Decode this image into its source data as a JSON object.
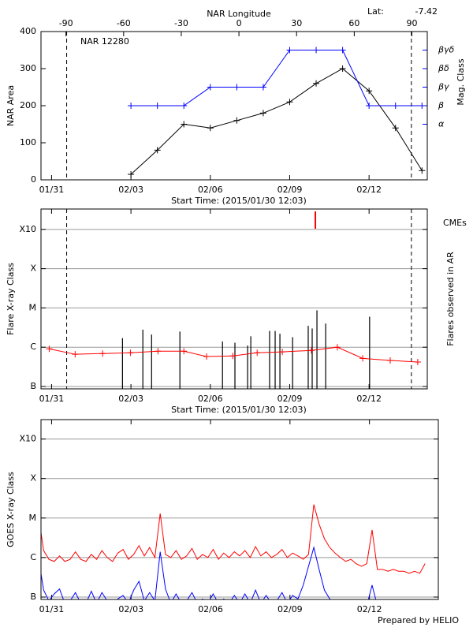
{
  "chart_data": [
    {
      "type": "line",
      "title": "NAR 12280",
      "lat_label": "Lat:",
      "lat": -7.42,
      "ylabel": "NAR Area",
      "xlabel": "Start Time: (2015/01/30 12:03)",
      "x2label": "NAR Longitude",
      "y2label": "Mag. Class",
      "y2color": "#0000ff",
      "xlim": [
        0.1,
        14.7
      ],
      "xticks": [
        {
          "value": 0.5,
          "label": "01/31"
        },
        {
          "value": 3.5,
          "label": "02/03"
        },
        {
          "value": 6.5,
          "label": "02/06"
        },
        {
          "value": 9.5,
          "label": "02/09"
        },
        {
          "value": 12.5,
          "label": "02/12"
        }
      ],
      "x2lim": [
        -103,
        98
      ],
      "x2ticks": [
        -90,
        -60,
        -30,
        0,
        30,
        60,
        90
      ],
      "ylim": [
        0,
        400
      ],
      "yticks": [
        0,
        100,
        200,
        300,
        400
      ],
      "y2lim": [
        0,
        8
      ],
      "y2ticks": [
        {
          "value": 3,
          "label": "α"
        },
        {
          "value": 4,
          "label": "β"
        },
        {
          "value": 5,
          "label": "βγ"
        },
        {
          "value": 6,
          "label": "βδ"
        },
        {
          "value": 7,
          "label": "βγδ"
        }
      ],
      "limb_lines": [
        1.07,
        14.1
      ],
      "x": [
        3.5,
        4.5,
        5.5,
        6.5,
        7.5,
        8.5,
        9.5,
        10.5,
        11.5,
        12.5,
        13.5,
        14.5
      ],
      "series": [
        {
          "color": "#000000",
          "marker": "plus",
          "values": [
            15,
            80,
            150,
            140,
            160,
            180,
            210,
            260,
            300,
            240,
            140,
            25
          ]
        },
        {
          "color": "#0000ff",
          "marker": "plus",
          "axis": "y2",
          "values": [
            4,
            4,
            4,
            5,
            5,
            5,
            7,
            7,
            7,
            4,
            4,
            4
          ]
        }
      ]
    },
    {
      "type": "flares",
      "ylabel": "Flare X-ray Class",
      "xlabel": "Start Time: (2015/01/30 12:03)",
      "right_label": "Flares observed in AR",
      "cme_label": "CMEs",
      "cme_color": "#ff0000",
      "xlim": [
        0.1,
        14.7
      ],
      "xticks": [
        {
          "value": 0.5,
          "label": "01/31"
        },
        {
          "value": 3.5,
          "label": "02/03"
        },
        {
          "value": 6.5,
          "label": "02/06"
        },
        {
          "value": 9.5,
          "label": "02/09"
        },
        {
          "value": 12.5,
          "label": "02/12"
        }
      ],
      "ylog": true,
      "grid": true,
      "ylim": [
        8.7e-08,
        0.0033
      ],
      "yticks": [
        {
          "value": 1e-07,
          "label": "B"
        },
        {
          "value": 1e-06,
          "label": "C"
        },
        {
          "value": 1e-05,
          "label": "M"
        },
        {
          "value": 0.0001,
          "label": "X"
        },
        {
          "value": 0.001,
          "label": "X10"
        }
      ],
      "limb_lines": [
        1.07,
        14.1
      ],
      "cmes": [
        10.47
      ],
      "series": [
        {
          "color": "#000000",
          "style": "spikes",
          "x": [
            3.18,
            3.95,
            4.28,
            5.35,
            6.96,
            7.43,
            7.91,
            8.03,
            8.74,
            8.95,
            9.13,
            9.61,
            10.2,
            10.35,
            10.53,
            10.86,
            12.52
          ],
          "values": [
            1.7e-06,
            2.8e-06,
            2.1e-06,
            2.5e-06,
            1.4e-06,
            1.3e-06,
            1.1e-06,
            1.9e-06,
            2.6e-06,
            2.6e-06,
            2.2e-06,
            1.8e-06,
            3.5e-06,
            3e-06,
            8.7e-06,
            4e-06,
            6e-06
          ]
        },
        {
          "color": "#ff0000",
          "marker": "plus",
          "x": [
            0.41,
            1.39,
            2.43,
            3.48,
            4.52,
            5.5,
            6.36,
            7.35,
            8.27,
            9.22,
            10.32,
            11.3,
            12.26,
            13.3,
            14.34
          ],
          "values": [
            9.1e-07,
            6.6e-07,
            6.9e-07,
            7.2e-07,
            7.9e-07,
            7.9e-07,
            5.8e-07,
            6e-07,
            7.2e-07,
            7.6e-07,
            8.3e-07,
            1e-06,
            5.2e-07,
            4.6e-07,
            4.2e-07
          ]
        }
      ]
    },
    {
      "type": "line",
      "ylabel": "GOES X-ray Class",
      "xlim": [
        0.1,
        15.1
      ],
      "xticks": [
        {
          "value": 0.5,
          "label": "01/31"
        },
        {
          "value": 3.5,
          "label": "02/03"
        },
        {
          "value": 6.5,
          "label": "02/06"
        },
        {
          "value": 9.5,
          "label": "02/09"
        },
        {
          "value": 12.5,
          "label": "02/12"
        }
      ],
      "ylog": true,
      "grid": true,
      "ylim": [
        8.7e-08,
        0.0031
      ],
      "yticks": [
        {
          "value": 1e-07,
          "label": "B"
        },
        {
          "value": 1e-06,
          "label": "C"
        },
        {
          "value": 1e-05,
          "label": "M"
        },
        {
          "value": 0.0001,
          "label": "X"
        },
        {
          "value": 0.001,
          "label": "X10"
        }
      ],
      "x": [
        0,
        0.2,
        0.4,
        0.6,
        0.8,
        1.0,
        1.2,
        1.4,
        1.6,
        1.8,
        2.0,
        2.2,
        2.4,
        2.6,
        2.8,
        3.0,
        3.2,
        3.4,
        3.6,
        3.8,
        4.0,
        4.2,
        4.4,
        4.6,
        4.8,
        5.0,
        5.2,
        5.4,
        5.6,
        5.8,
        6.0,
        6.2,
        6.4,
        6.6,
        6.8,
        7.0,
        7.2,
        7.4,
        7.6,
        7.8,
        8.0,
        8.2,
        8.4,
        8.6,
        8.8,
        9.0,
        9.2,
        9.4,
        9.6,
        9.8,
        10.0,
        10.2,
        10.4,
        10.6,
        10.8,
        11.0,
        11.2,
        11.4,
        11.6,
        11.8,
        12.0,
        12.2,
        12.4,
        12.6,
        12.8,
        13.0,
        13.2,
        13.4,
        13.6,
        13.8,
        14.0,
        14.2,
        14.4,
        14.6
      ],
      "series": [
        {
          "color": "#ff0000",
          "values": [
            1.2e-05,
            1.5e-06,
            9e-07,
            8e-07,
            1.1e-06,
            8e-07,
            9e-07,
            1.4e-06,
            9e-07,
            8e-07,
            1.2e-06,
            9e-07,
            1.5e-06,
            1e-06,
            8e-07,
            1.3e-06,
            1.6e-06,
            9e-07,
            1.2e-06,
            2e-06,
            1.1e-06,
            1.8e-06,
            1e-06,
            1.3e-05,
            1.2e-06,
            1e-06,
            1.5e-06,
            9e-07,
            1.1e-06,
            1.7e-06,
            9e-07,
            1.2e-06,
            1e-06,
            1.6e-06,
            9e-07,
            1.3e-06,
            1e-06,
            1.4e-06,
            1.1e-06,
            1.5e-06,
            1e-06,
            1.9e-06,
            1.1e-06,
            1.4e-06,
            1e-06,
            1.2e-06,
            1.6e-06,
            1e-06,
            1.3e-06,
            1.1e-06,
            9e-07,
            1.2e-06,
            2.2e-05,
            7e-06,
            3e-06,
            1.8e-06,
            1.3e-06,
            1e-06,
            8e-07,
            9e-07,
            7e-07,
            6e-07,
            7e-07,
            5e-06,
            5e-07,
            5e-07,
            4.5e-07,
            5e-07,
            4.5e-07,
            4.5e-07,
            4e-07,
            4.5e-07,
            4e-07,
            7e-07
          ]
        },
        {
          "color": "#0000ff",
          "values": [
            1e-06,
            1.5e-07,
            8e-08,
            1.2e-07,
            1.6e-07,
            7e-08,
            8e-08,
            1.3e-07,
            7e-08,
            7e-08,
            1.4e-07,
            7e-08,
            1.3e-07,
            8e-08,
            7e-08,
            9e-08,
            1.1e-07,
            7e-08,
            1.5e-07,
            2.5e-07,
            8e-08,
            1.3e-07,
            8e-08,
            1.4e-06,
            1.6e-07,
            7e-08,
            1.2e-07,
            7e-08,
            8e-08,
            1.3e-07,
            7e-08,
            9e-08,
            7e-08,
            1.2e-07,
            7e-08,
            9e-08,
            7e-08,
            1.1e-07,
            7e-08,
            1.2e-07,
            7e-08,
            1.5e-07,
            7e-08,
            1.1e-07,
            7e-08,
            8e-08,
            1.3e-07,
            7e-08,
            1.1e-07,
            9e-08,
            2e-07,
            6e-07,
            1.8e-06,
            5e-07,
            1.5e-07,
            9e-08,
            7e-08,
            6e-08,
            6e-08,
            6e-08,
            6e-08,
            6e-08,
            6e-08,
            2e-07,
            6e-08,
            6e-08,
            6e-08,
            6e-08,
            6e-08,
            6e-08,
            6e-08,
            6e-08,
            6e-08,
            8e-08
          ]
        }
      ]
    }
  ],
  "footer": "Prepared by HELIO"
}
